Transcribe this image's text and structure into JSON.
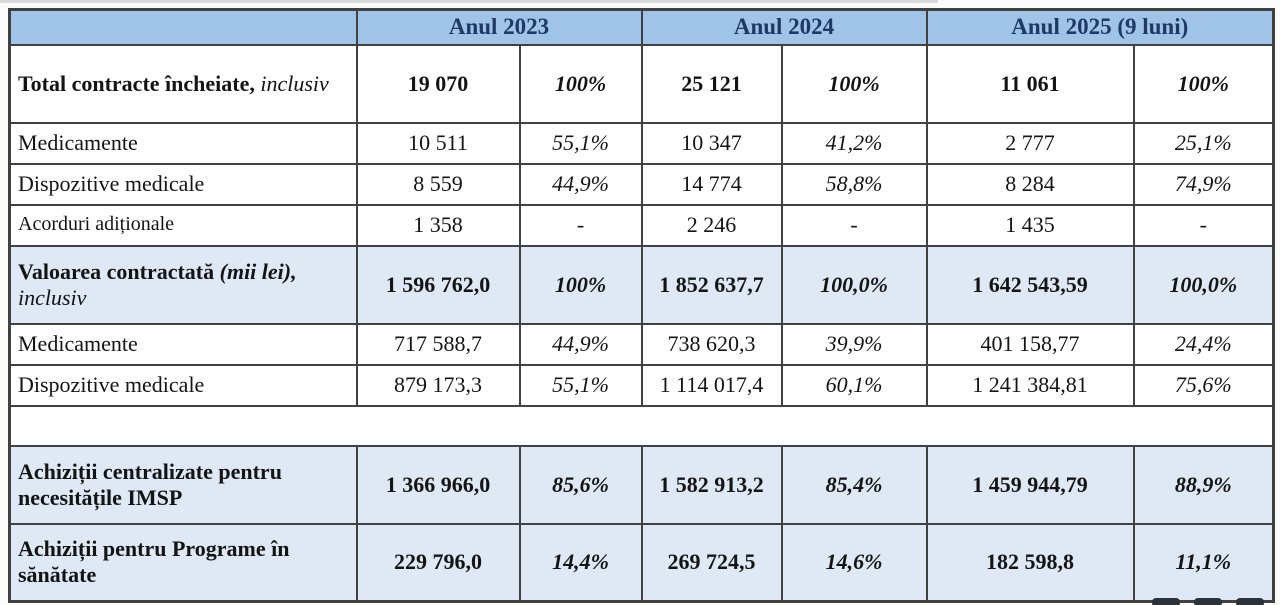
{
  "chart_data": {
    "type": "table",
    "header": {
      "y2023": "Anul 2023",
      "y2024": "Anul 2024",
      "y2025": "Anul 2025 (9 luni)"
    },
    "rows": [
      {
        "bold": "Total contracte încheiate,",
        "italic": "inclusiv",
        "values": [
          "19 070",
          "100%",
          "25 121",
          "100%",
          "11 061",
          "100%"
        ]
      },
      {
        "plain": "Medicamente",
        "values": [
          "10 511",
          "55,1%",
          "10 347",
          "41,2%",
          "2 777",
          "25,1%"
        ]
      },
      {
        "plain": "Dispozitive medicale",
        "values": [
          "8 559",
          "44,9%",
          "14 774",
          "58,8%",
          "8 284",
          "74,9%"
        ]
      },
      {
        "plain": "Acorduri adiționale",
        "values": [
          "1 358",
          "-",
          "2 246",
          "-",
          "1 435",
          "-"
        ]
      },
      {
        "bold": "Valoarea contractată",
        "bold_italic": "(mii",
        "bold_italic2": "lei),",
        "italic": "inclusiv",
        "values": [
          "1 596 762,0",
          "100%",
          "1 852 637,7",
          "100,0%",
          "1 642 543,59",
          "100,0%"
        ]
      },
      {
        "plain": "Medicamente",
        "values": [
          "717 588,7",
          "44,9%",
          "738 620,3",
          "39,9%",
          "401 158,77",
          "24,4%"
        ]
      },
      {
        "plain": "Dispozitive medicale",
        "values": [
          "879 173,3",
          "55,1%",
          "1 114 017,4",
          "60,1%",
          "1 241 384,81",
          "75,6%"
        ]
      },
      {
        "plain": "",
        "values": [
          "",
          "",
          "",
          "",
          "",
          ""
        ]
      },
      {
        "bold": "Achiziții centralizate pentru necesitățile IMSP",
        "values": [
          "1 366 966,0",
          "85,6%",
          "1 582 913,2",
          "85,4%",
          "1 459 944,79",
          "88,9%"
        ]
      },
      {
        "bold": "Achiziții pentru Programe în sănătate",
        "values": [
          "229 796,0",
          "14,4%",
          "269 724,5",
          "14,6%",
          "182 598,8",
          "11,1%"
        ]
      }
    ]
  },
  "colors": {
    "header_bg": "#a0c4e8",
    "highlight_bg": "#dee9f5",
    "header_text": "#1f3864",
    "border": "#414141",
    "body_text": "#141414"
  }
}
